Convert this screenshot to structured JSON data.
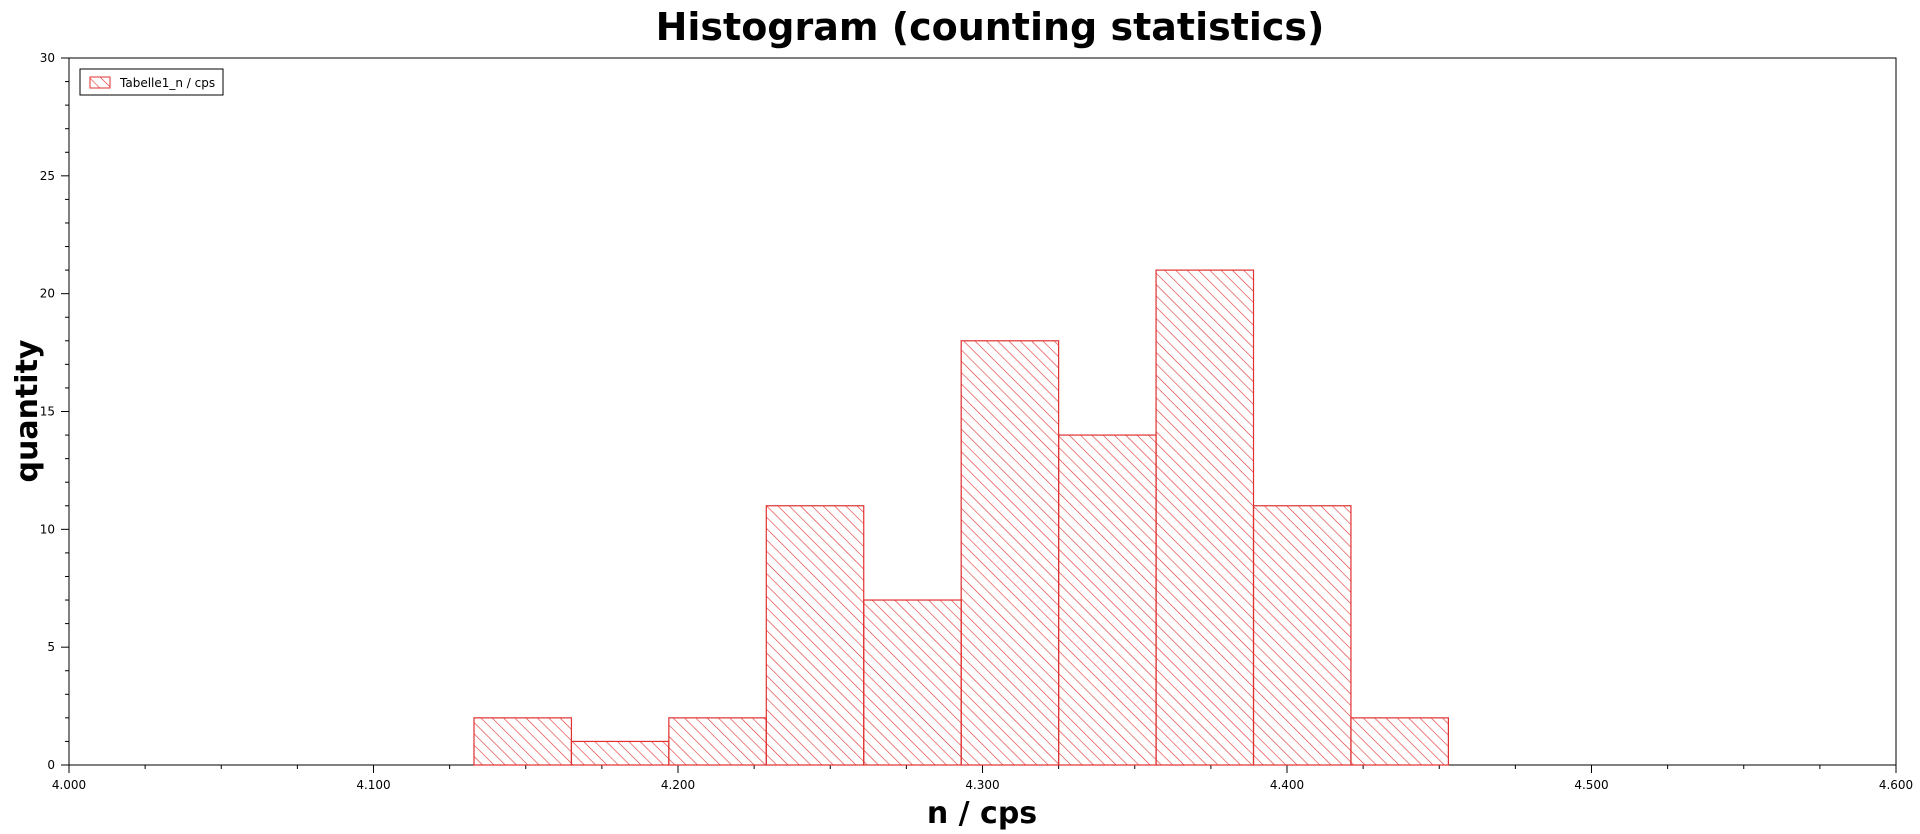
{
  "chart_data": {
    "type": "bar",
    "title": "Histogram (counting statistics)",
    "xlabel": "n / cps",
    "ylabel": "quantity",
    "xlim": [
      4.0,
      4.6
    ],
    "ylim": [
      0,
      30
    ],
    "x_ticks": [
      "4.000",
      "4.100",
      "4.200",
      "4.300",
      "4.400",
      "4.500",
      "4.600"
    ],
    "y_ticks": [
      "0",
      "5",
      "10",
      "15",
      "20",
      "25",
      "30"
    ],
    "legend": {
      "position": "top-left",
      "label": "Tabelle1_n / cps"
    },
    "grid": false,
    "bar_color": "#e03030",
    "bin_width": 0.032,
    "bins": [
      {
        "start": 4.133,
        "end": 4.165,
        "count": 2
      },
      {
        "start": 4.165,
        "end": 4.197,
        "count": 1
      },
      {
        "start": 4.197,
        "end": 4.229,
        "count": 2
      },
      {
        "start": 4.229,
        "end": 4.261,
        "count": 11
      },
      {
        "start": 4.261,
        "end": 4.293,
        "count": 7
      },
      {
        "start": 4.293,
        "end": 4.325,
        "count": 18
      },
      {
        "start": 4.325,
        "end": 4.357,
        "count": 14
      },
      {
        "start": 4.357,
        "end": 4.389,
        "count": 21
      },
      {
        "start": 4.389,
        "end": 4.421,
        "count": 11
      },
      {
        "start": 4.421,
        "end": 4.453,
        "count": 2
      }
    ]
  }
}
